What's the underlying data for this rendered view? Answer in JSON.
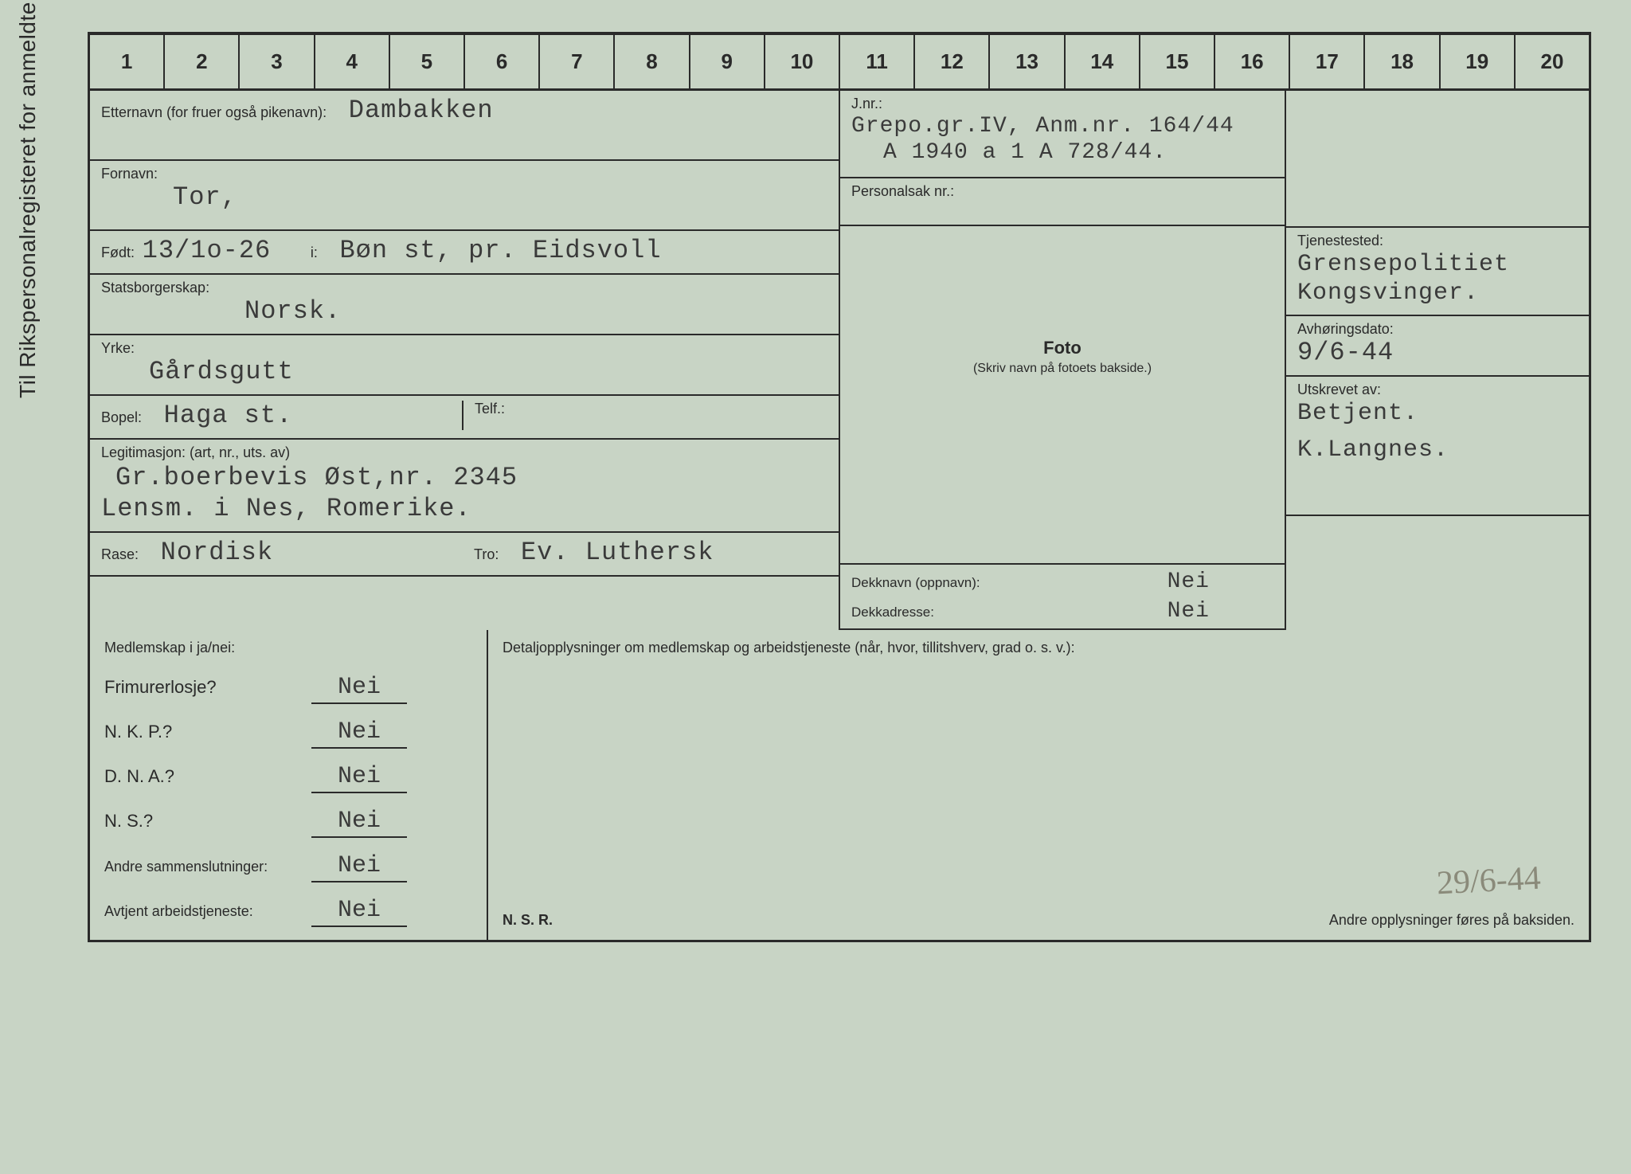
{
  "verticalLabel": "Til Rikspersonalregisteret for anmeldte.",
  "ruler": [
    "1",
    "2",
    "3",
    "4",
    "5",
    "6",
    "7",
    "8",
    "9",
    "10",
    "11",
    "12",
    "13",
    "14",
    "15",
    "16",
    "17",
    "18",
    "19",
    "20"
  ],
  "labels": {
    "etternavn": "Etternavn (for fruer også pikenavn):",
    "fornavn": "Fornavn:",
    "fodt": "Født:",
    "i": "i:",
    "statsborgerskap": "Statsborgerskap:",
    "yrke": "Yrke:",
    "bopel": "Bopel:",
    "telf": "Telf.:",
    "legitimasjon": "Legitimasjon: (art, nr., uts. av)",
    "rase": "Rase:",
    "tro": "Tro:",
    "jnr": "J.nr.:",
    "personalsak": "Personalsak nr.:",
    "foto": "Foto",
    "fotoSub": "(Skriv navn på fotoets bakside.)",
    "tjenestested": "Tjenestested:",
    "avhoringsdato": "Avhøringsdato:",
    "utskrevet": "Utskrevet av:",
    "dekknavn": "Dekknavn (oppnavn):",
    "dekkadresse": "Dekkadresse:",
    "medlemskap": "Medlemskap i ja/nei:",
    "detalj": "Detaljopplysninger om medlemskap og arbeidstjeneste (når, hvor, tillitshverv, grad o. s. v.):",
    "frimurer": "Frimurerlosje?",
    "nkp": "N. K. P.?",
    "dna": "D. N. A.?",
    "ns": "N. S.?",
    "andre": "Andre sammenslutninger:",
    "avtjent": "Avtjent arbeidstjeneste:",
    "nsr": "N. S. R.",
    "andreOpp": "Andre opplysninger føres på baksiden."
  },
  "values": {
    "etternavn": "Dambakken",
    "fornavn": "Tor,",
    "fodt": "13/1o-26",
    "fodested": "Bøn st, pr. Eidsvoll",
    "statsborgerskap": "Norsk.",
    "yrke": "Gårdsgutt",
    "bopel": "Haga st.",
    "telf": "",
    "legitimasjon1": "Gr.boerbevis Øst,nr. 2345",
    "legitimasjon2": "Lensm. i Nes, Romerike.",
    "rase": "Nordisk",
    "tro": "Ev. Luthersk",
    "jnr1": "Grepo.gr.IV, Anm.nr. 164/44",
    "jnr2": "A 1940 a  1 A 728/44.",
    "personalsak": "",
    "tjenestested1": "Grensepolitiet",
    "tjenestested2": "Kongsvinger.",
    "avhoringsdato": "9/6-44",
    "utskrevet1": "Betjent.",
    "utskrevet2": "K.Langnes.",
    "dekknavn": "Nei",
    "dekkadresse": "Nei",
    "frimurer": "Nei",
    "nkp": "Nei",
    "dna": "Nei",
    "ns": "Nei",
    "andre": "Nei",
    "avtjent": "Nei",
    "pencil": "29/6-44"
  }
}
